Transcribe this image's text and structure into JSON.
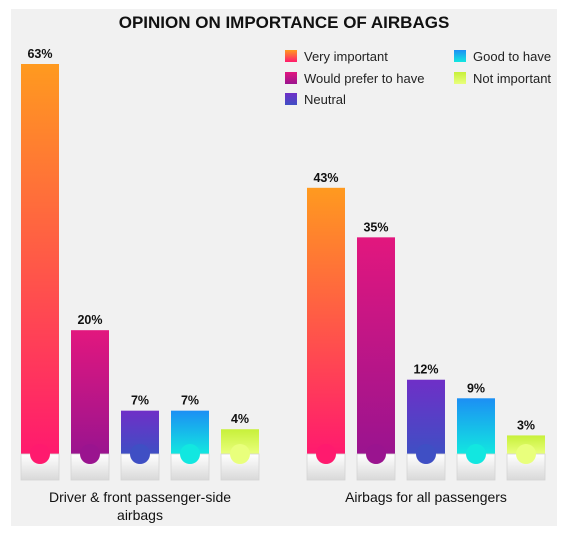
{
  "chart_data": {
    "type": "bar",
    "title": "OPINION ON IMPORTANCE OF AIRBAGS",
    "ylim": [
      0,
      63
    ],
    "categories": [
      "Driver & front passenger-side airbags",
      "Airbags for all passengers"
    ],
    "category_lines": [
      [
        "Driver & front passenger-side",
        "airbags"
      ],
      [
        "Airbags for all passengers"
      ]
    ],
    "series": [
      {
        "name": "Very important",
        "values": [
          63,
          43
        ],
        "color_top": "#ff9a1f",
        "color_bottom": "#ff1a6e"
      },
      {
        "name": "Would prefer to have",
        "values": [
          20,
          35
        ],
        "color_top": "#e2177e",
        "color_bottom": "#9a148f"
      },
      {
        "name": "Neutral",
        "values": [
          7,
          12
        ],
        "color_top": "#6f2fc7",
        "color_bottom": "#3f4fc4"
      },
      {
        "name": "Good to have",
        "values": [
          7,
          9
        ],
        "color_top": "#1c8ff4",
        "color_bottom": "#12e7e0"
      },
      {
        "name": "Not important",
        "values": [
          4,
          3
        ],
        "color_top": "#c7f03a",
        "color_bottom": "#e9ff7c"
      }
    ],
    "value_suffix": "%",
    "legend_position": "top-right",
    "grid": false
  }
}
